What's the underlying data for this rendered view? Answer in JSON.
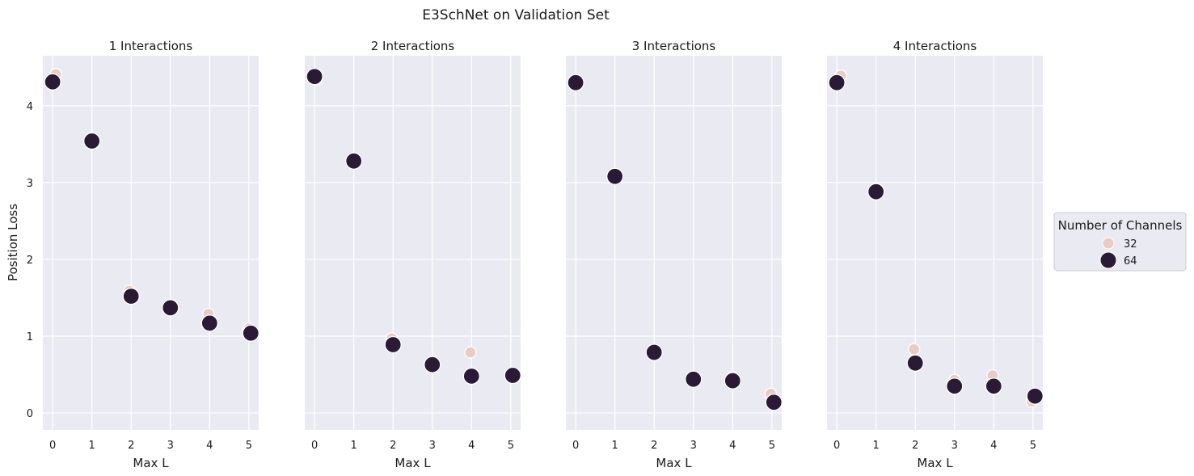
{
  "chart_data": {
    "type": "scatter",
    "title": "E3SchNet on Validation Set",
    "xlabel": "Max L",
    "ylabel": "Position Loss",
    "x_ticks": [
      0,
      1,
      2,
      3,
      4,
      5
    ],
    "y_ticks": [
      0,
      1,
      2,
      3,
      4
    ],
    "xlim": [
      -0.25,
      5.25
    ],
    "ylim": [
      -0.22,
      4.65
    ],
    "grid": true,
    "legend": {
      "title": "Number of Channels",
      "placement": "right",
      "entries": [
        {
          "label": "32",
          "color": "#ebcbc3",
          "size": "small"
        },
        {
          "label": "64",
          "color": "#2b1a35",
          "size": "large"
        }
      ]
    },
    "colors": {
      "panel_bg": "#eaeaf2",
      "grid": "#ffffff",
      "point_32": "#ebcbc3",
      "point_64": "#2b1a35"
    },
    "panels": [
      {
        "title": "1 Interactions",
        "series": [
          {
            "name": "32",
            "x": [
              0.08,
              1.0,
              1.95,
              3.0,
              3.97,
              5.0
            ],
            "y": [
              4.41,
              3.55,
              1.59,
              1.37,
              1.29,
              1.1
            ]
          },
          {
            "name": "64",
            "x": [
              0.0,
              1.0,
              2.0,
              3.0,
              4.0,
              5.05
            ],
            "y": [
              4.31,
              3.54,
              1.52,
              1.37,
              1.17,
              1.04
            ]
          }
        ]
      },
      {
        "title": "2 Interactions",
        "series": [
          {
            "name": "32",
            "x": [
              0.05,
              1.0,
              1.97,
              3.0,
              3.97,
              5.0
            ],
            "y": [
              4.34,
              3.28,
              0.97,
              0.65,
              0.79,
              0.5
            ]
          },
          {
            "name": "64",
            "x": [
              0.0,
              1.0,
              2.0,
              3.0,
              4.0,
              5.05
            ],
            "y": [
              4.38,
              3.28,
              0.89,
              0.63,
              0.48,
              0.49
            ]
          }
        ]
      },
      {
        "title": "3 Interactions",
        "series": [
          {
            "name": "32",
            "x": [
              0.03,
              1.0,
              1.97,
              3.0,
              4.0,
              4.97
            ],
            "y": [
              4.31,
              3.09,
              0.8,
              0.46,
              0.47,
              0.25
            ]
          },
          {
            "name": "64",
            "x": [
              0.0,
              1.0,
              2.0,
              3.0,
              4.0,
              5.05
            ],
            "y": [
              4.3,
              3.08,
              0.79,
              0.44,
              0.42,
              0.14
            ]
          }
        ]
      },
      {
        "title": "4 Interactions",
        "series": [
          {
            "name": "32",
            "x": [
              0.1,
              1.0,
              1.97,
              3.0,
              3.97,
              4.97
            ],
            "y": [
              4.39,
              2.89,
              0.83,
              0.43,
              0.49,
              0.15
            ]
          },
          {
            "name": "64",
            "x": [
              0.0,
              1.0,
              2.0,
              3.0,
              4.0,
              5.05
            ],
            "y": [
              4.3,
              2.88,
              0.65,
              0.35,
              0.35,
              0.22
            ]
          }
        ]
      }
    ]
  }
}
